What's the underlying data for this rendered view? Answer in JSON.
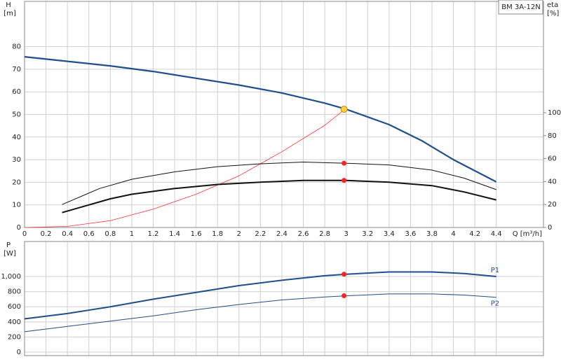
{
  "chart_data": [
    {
      "type": "line",
      "title": "BM 3A-12N",
      "y_label": "H",
      "y_unit": "[m]",
      "y2_label": "eta",
      "y2_unit": "[%]",
      "x_label": "Q [m³/h]",
      "xlim": [
        0,
        4.84
      ],
      "ylim": [
        0,
        100
      ],
      "y2lim": [
        0,
        197
      ],
      "xticks": [
        0,
        0.2,
        0.4,
        0.6,
        0.8,
        1.0,
        1.2,
        1.4,
        1.6,
        1.8,
        2.0,
        2.2,
        2.4,
        2.6,
        2.8,
        3.0,
        3.2,
        3.4,
        3.6,
        3.8,
        4.0,
        4.2,
        4.4
      ],
      "yticks": [
        0,
        10,
        20,
        30,
        40,
        50,
        60,
        70,
        80
      ],
      "y2ticks": [
        0,
        20,
        40,
        60,
        80,
        100
      ],
      "grid": true,
      "series": [
        {
          "color": "#1f4e8c",
          "width": 2.2,
          "axis": "y",
          "x": [
            0,
            0.8,
            1.2,
            1.6,
            2.0,
            2.4,
            2.8,
            3.0,
            3.4,
            3.7,
            4.0,
            4.4
          ],
          "values": [
            75.5,
            71.5,
            69,
            66,
            63,
            59.5,
            55,
            52.3,
            45.5,
            38.5,
            30,
            20.2
          ]
        },
        {
          "color": "#ff3030",
          "width": 0.8,
          "axis": "y2",
          "x": [
            0,
            0.4,
            0.8,
            1.2,
            1.6,
            2.0,
            2.4,
            2.8,
            3.0
          ],
          "values": [
            0,
            1,
            6,
            16,
            29,
            45,
            66,
            89,
            104
          ]
        },
        {
          "color": "#111111",
          "width": 1,
          "axis": "y2",
          "x": [
            0.35,
            0.7,
            1.0,
            1.4,
            1.8,
            2.2,
            2.6,
            3.0,
            3.4,
            3.8,
            4.1,
            4.4
          ],
          "values": [
            20,
            34,
            42,
            48.5,
            53,
            55.5,
            57,
            56,
            54.5,
            50,
            43,
            33
          ]
        },
        {
          "color": "#111111",
          "width": 2,
          "axis": "y2",
          "x": [
            0.35,
            0.8,
            1.0,
            1.4,
            1.8,
            2.2,
            2.6,
            3.0,
            3.4,
            3.8,
            4.1,
            4.4
          ],
          "values": [
            13,
            25,
            29,
            34,
            37.5,
            39.5,
            41,
            41,
            39.5,
            36.5,
            31,
            24
          ]
        }
      ],
      "markers": [
        {
          "x": 2.98,
          "y": 52.3,
          "axis": "y",
          "color": "#ffd040"
        },
        {
          "x": 2.98,
          "y": 56,
          "axis": "y2",
          "color": "#ff2020"
        },
        {
          "x": 2.98,
          "y": 41,
          "axis": "y2",
          "color": "#ff2020"
        }
      ]
    },
    {
      "type": "line",
      "y_label": "P",
      "y_unit": "[W]",
      "xlim": [
        0,
        4.84
      ],
      "ylim": [
        -46,
        1463
      ],
      "xticks": [
        0,
        0.2,
        0.4,
        0.6,
        0.8,
        1.0,
        1.2,
        1.4,
        1.6,
        1.8,
        2.0,
        2.2,
        2.4,
        2.6,
        2.8,
        3.0,
        3.2,
        3.4,
        3.6,
        3.8,
        4.0,
        4.2,
        4.4
      ],
      "yticks": [
        0,
        200,
        400,
        600,
        800,
        {
          "value": 1000,
          "label": "1,000"
        }
      ],
      "grid": true,
      "series": [
        {
          "name": "P1",
          "color": "#1f4e8c",
          "width": 2,
          "axis": "y",
          "x": [
            0,
            0.4,
            0.8,
            1.2,
            1.6,
            2.0,
            2.4,
            2.8,
            3.0,
            3.4,
            3.8,
            4.1,
            4.4
          ],
          "values": [
            440,
            510,
            600,
            700,
            790,
            880,
            950,
            1010,
            1030,
            1060,
            1060,
            1040,
            1000
          ]
        },
        {
          "name": "P2",
          "color": "#1f4e8c",
          "width": 1,
          "axis": "y",
          "x": [
            0,
            0.4,
            0.8,
            1.2,
            1.6,
            2.0,
            2.4,
            2.8,
            3.0,
            3.4,
            3.8,
            4.1,
            4.4
          ],
          "values": [
            270,
            340,
            410,
            480,
            560,
            630,
            690,
            730,
            745,
            770,
            770,
            755,
            725
          ]
        }
      ],
      "markers": [
        {
          "x": 2.98,
          "y": 1030,
          "axis": "y",
          "color": "#ff2020"
        },
        {
          "x": 2.98,
          "y": 745,
          "axis": "y",
          "color": "#ff2020"
        }
      ]
    }
  ]
}
